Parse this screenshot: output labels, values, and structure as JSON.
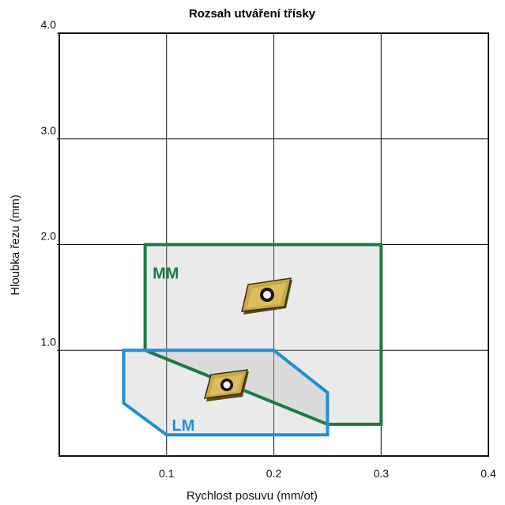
{
  "chart_data": {
    "type": "area",
    "title": "Rozsah utváření třísky",
    "xlabel": "Rychlost posuvu (mm/ot)",
    "ylabel": "Hloubka řezu (mm)",
    "xlim": [
      0,
      0.4
    ],
    "ylim": [
      0,
      4.0
    ],
    "x_ticks": [
      "0.1",
      "0.2",
      "0.3",
      "0.4"
    ],
    "y_ticks": [
      "1.0",
      "2.0",
      "3.0",
      "4.0"
    ],
    "grid": true,
    "series": [
      {
        "name": "MM",
        "color": "#1a7a45",
        "polygon": [
          [
            0.08,
            2.0
          ],
          [
            0.3,
            2.0
          ],
          [
            0.3,
            0.3
          ],
          [
            0.25,
            0.3
          ],
          [
            0.08,
            1.0
          ]
        ]
      },
      {
        "name": "LM",
        "color": "#1f8fd6",
        "polygon": [
          [
            0.06,
            1.0
          ],
          [
            0.2,
            1.0
          ],
          [
            0.25,
            0.6
          ],
          [
            0.25,
            0.2
          ],
          [
            0.1,
            0.2
          ],
          [
            0.06,
            0.5
          ]
        ]
      }
    ],
    "insert_icons": [
      "insert-icon"
    ]
  }
}
